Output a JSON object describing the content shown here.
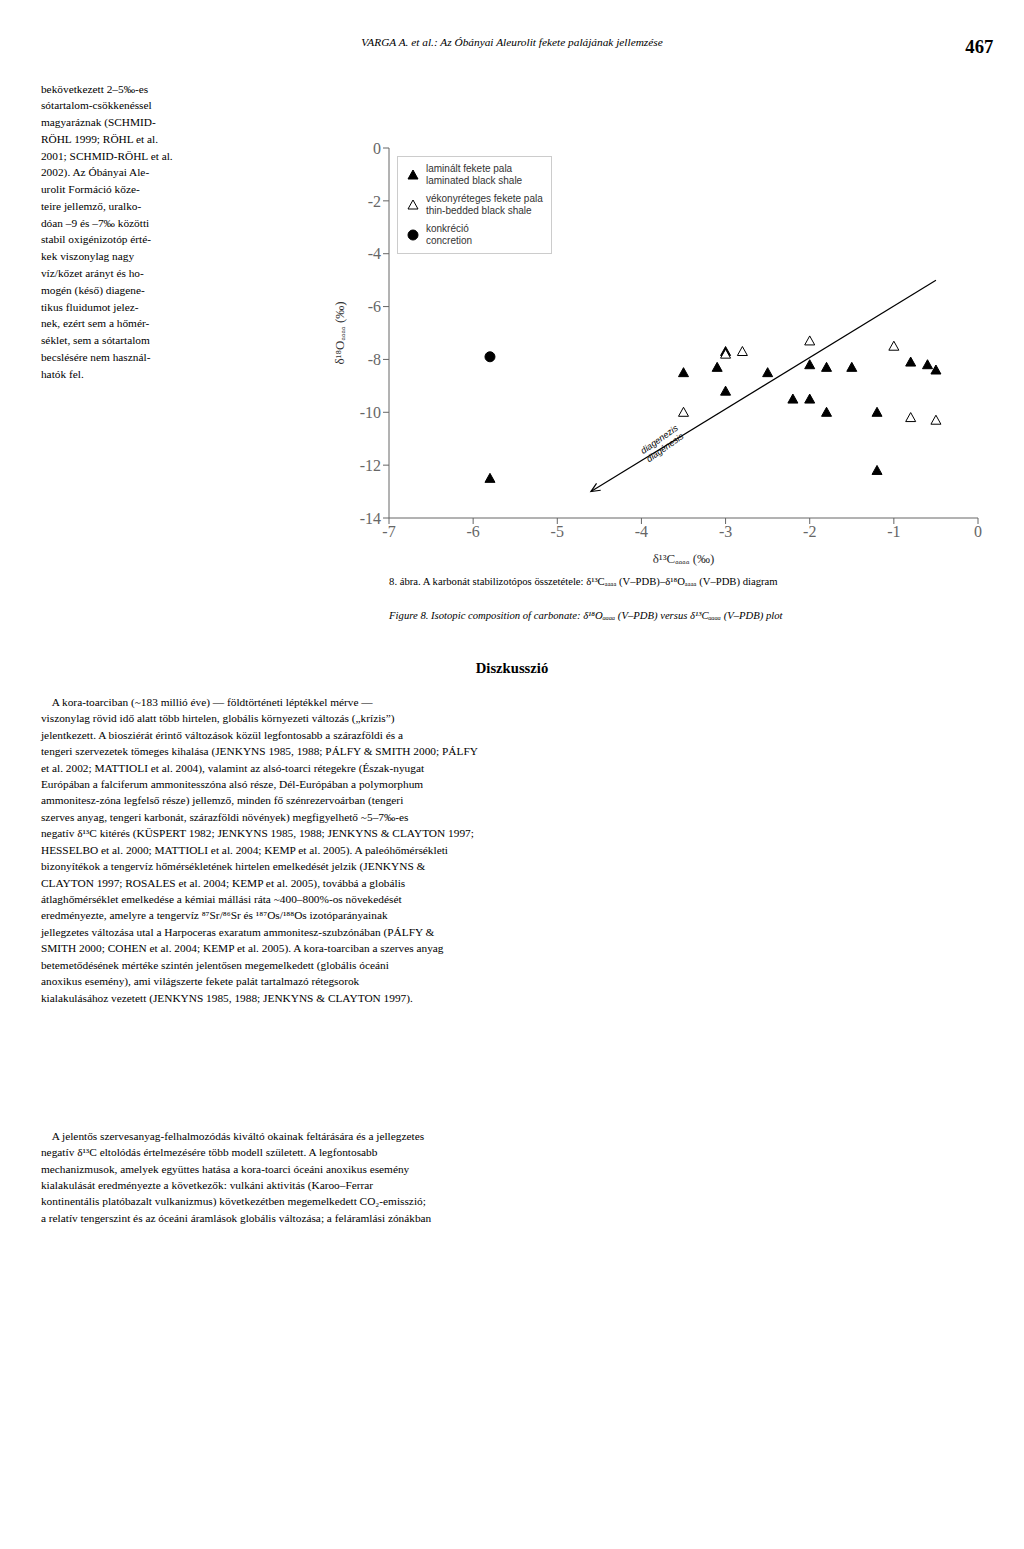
{
  "chart_data": {
    "type": "scatter",
    "title": "VARGA A. et al.: Az Óbányai Aleurolit fekete palájának jellemzése",
    "x_label": "δ¹³Cₐₐₐₐ (‰)",
    "y_label": "δ¹⁸Oₐₐₐₐ (‰)",
    "xlim": [
      -7,
      0
    ],
    "ylim": [
      -14,
      0
    ],
    "xticks": [
      -7,
      -6,
      -5,
      -4,
      -3,
      -2,
      -1,
      0
    ],
    "yticks": [
      0,
      -2,
      -4,
      -6,
      -8,
      -10,
      -12,
      -14
    ],
    "grid": false,
    "legend": "upper left",
    "series": [
      {
        "name": "laminált fekete pala\nlaminated black shale",
        "type": "scatter",
        "marker": "triangle",
        "color": "#000000",
        "x": [
          -3.0,
          -3.1,
          -3.5,
          -3.0,
          -2.5,
          -2.2,
          -2.0,
          -1.8,
          -1.5,
          -2.0,
          -1.8,
          -1.2,
          -0.8,
          -0.6,
          -0.5,
          -5.8,
          -1.2
        ],
        "values": [
          -7.7,
          -8.3,
          -8.5,
          -9.2,
          -8.5,
          -9.5,
          -8.2,
          -8.3,
          -8.3,
          -9.5,
          -10.0,
          -10.0,
          -8.1,
          -8.2,
          -8.4,
          -12.5,
          -12.2
        ]
      },
      {
        "name": "vékonyréteges fekete pala\nthin-bedded black shale",
        "type": "scatter",
        "marker": "triangle-open",
        "color": "#000000",
        "x": [
          -3.0,
          -2.8,
          -2.0,
          -1.0,
          -3.5,
          -0.8,
          -0.5
        ],
        "values": [
          -7.8,
          -7.7,
          -7.3,
          -7.5,
          -10.0,
          -10.2,
          -10.3
        ]
      },
      {
        "name": "konkréció\nconcretion",
        "type": "scatter",
        "marker": "circle",
        "color": "#000000",
        "x": [
          -5.8
        ],
        "values": [
          -7.9
        ]
      },
      {
        "type": "line",
        "marker": "arrow",
        "color": "#000000",
        "x": [
          -4.6,
          -0.5
        ],
        "values": [
          -13.0,
          -5.0
        ]
      }
    ],
    "annotations": [
      {
        "text": "diagenezis\ndiagénesis",
        "x": -3.75,
        "y": -11.2
      },
      {
        "text": "467"
      },
      {
        "text": "bekövetkezett 2–5‰-es\nsótartalom-csökkenéssel\nmagyaráznak (SCHMID-\nRÖHL 1999; RÖHL et al.\n2001; SCHMID-RÖHL et al.\n2002). Az Óbányai Ale-\nurolit Formáció kőze-\nteire jellemző, uralko-\ndóan –9 és –7‰ közötti\nstabil oxigénizotóp érté-\nkek viszonylag nagy\nvíz/kőzet arányt és ho-\nmogén (késő) diagene-\ntikus fluidumot jelez-\nnek, ezért sem a hőmér-\nséklet, sem a sótartalom\nbecslésére nem használ-\nhatók fel."
      },
      {
        "text": "8. ábra. A karbonát stabilizotópos összetétele: δ¹³Cₐₐₐₐ (V–PDB)–δ¹⁸Oₐₐₐₐ (V–PDB) diagram"
      },
      {
        "text": "Figure 8. Isotopic composition of carbonate: δ¹⁸Oₐₐₐₐ (V–PDB) versus δ¹³Cₐₐₐₐ (V–PDB) plot"
      },
      {
        "text": "Diszkusszió"
      },
      {
        "text": "    A kora-toarciban (~183 millió éve) — földtörténeti léptékkel mérve —\nviszonylag rövid idő alatt több hirtelen, globális környezeti változás („krízis”)\njelentkezett. A biosziérát érintő változások közül legfontosabb a szárazföldi és a\ntengeri szervezetek tömeges kihalása (JENKYNS 1985, 1988; PÁLFY & SMITH 2000; PÁLFY\net al. 2002; MATTIOLI et al. 2004), valamint az alsó-toarci rétegekre (Észak-nyugat\nEurópában a falciferum ammonitesszóna alsó része, Dél-Európában a polymorphum\nammonitesz-zóna legfelső része) jellemző, minden fő szénrezervoárban (tengeri\nszerves anyag, tengeri karbonát, szárazföldi növények) megfigyelhető ~5–7‰-es\nnegatív δ¹³C kitérés (KÜSPERT 1982; JENKYNS 1985, 1988; JENKYNS & CLAYTON 1997;\nHESSELBO et al. 2000; MATTIOLI et al. 2004; KEMP et al. 2005). A paleóhőmérsékleti\nbizonyítékok a tengervíz hőmérsékletének hirtelen emelkedését jelzik (JENKYNS &\nCLAYTON 1997; ROSALES et al. 2004; KEMP et al. 2005), továbbá a globális\nátlaghőmérséklet emelkedése a kémiai mállási ráta ~400–800%-os növekedését\neredményezte, amelyre a tengervíz ⁸⁷Sr/⁸⁶Sr és ¹⁸⁷Os/¹⁸⁸Os izotóparányainak\njellegzetes változása utal a Harpoceras exaratum ammonitesz-szubzónában (PÁLFY &\nSMITH 2000; COHEN et al. 2004; KEMP et al. 2005). A kora-toarciban a szerves anyag\nbetemetődésének mértéke szintén jelentősen megemelkedett (globális óceáni\nanoxikus esemény), ami világszerte fekete palát tartalmazó rétegsorok\nkialakulásához vezetett (JENKYNS 1985, 1988; JENKYNS & CLAYTON 1997)."
      },
      {
        "text": "    A jelentős szervesanyag-felhalmozódás kiváltó okainak feltárására és a jellegzetes\nnegatív δ¹³C eltolódás értelmezésére több modell született. A legfontosabb\nmechanizmusok, amelyek együttes hatása a kora-toarci óceáni anoxikus esemény\nkialakulását eredményezte a következők: vulkáni aktivitás (Karoo–Ferrar\nkontinentális platóbazalt vulkanizmus) következétben megemelkedett CO₂-emisszió;\na relatív tengerszint és az óceáni áramlások globális változása; a feláramlási zónákban"
      }
    ]
  }
}
